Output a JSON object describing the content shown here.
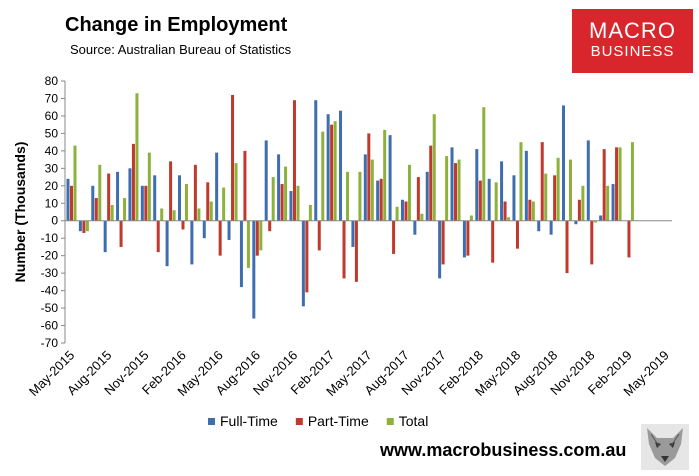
{
  "header": {
    "title": "Change in Employment",
    "subtitle": "Source: Australian Bureau of Statistics"
  },
  "logo": {
    "line1": "MACRO",
    "line2": "BUSINESS",
    "color": "#d9262d"
  },
  "footer": {
    "url": "www.macrobusiness.com.au"
  },
  "chart_data": {
    "type": "bar",
    "ylabel": "Number (Thousands)",
    "ylim": [
      -70,
      80
    ],
    "yticks": [
      80,
      70,
      60,
      50,
      40,
      30,
      20,
      10,
      0,
      -10,
      -20,
      -30,
      -40,
      -50,
      -60,
      -70
    ],
    "grid": false,
    "legend_position": "bottom",
    "categories": [
      "May-2015",
      "Jun-2015",
      "Jul-2015",
      "Aug-2015",
      "Sep-2015",
      "Oct-2015",
      "Nov-2015",
      "Dec-2015",
      "Jan-2016",
      "Feb-2016",
      "Mar-2016",
      "Apr-2016",
      "May-2016",
      "Jun-2016",
      "Jul-2016",
      "Aug-2016",
      "Sep-2016",
      "Oct-2016",
      "Nov-2016",
      "Dec-2016",
      "Jan-2017",
      "Feb-2017",
      "Mar-2017",
      "Apr-2017",
      "May-2017",
      "Jun-2017",
      "Jul-2017",
      "Aug-2017",
      "Sep-2017",
      "Oct-2017",
      "Nov-2017",
      "Dec-2017",
      "Jan-2018",
      "Feb-2018",
      "Mar-2018",
      "Apr-2018",
      "May-2018",
      "Jun-2018",
      "Jul-2018",
      "Aug-2018",
      "Sep-2018",
      "Oct-2018",
      "Nov-2018",
      "Dec-2018",
      "Jan-2019",
      "Feb-2019",
      "Mar-2019",
      "Apr-2019",
      "May-2019"
    ],
    "tick_labels": [
      "May-2015",
      "",
      "",
      "Aug-2015",
      "",
      "",
      "Nov-2015",
      "",
      "",
      "Feb-2016",
      "",
      "",
      "May-2016",
      "",
      "",
      "Aug-2016",
      "",
      "",
      "Nov-2016",
      "",
      "",
      "Feb-2017",
      "",
      "",
      "May-2017",
      "",
      "",
      "Aug-2017",
      "",
      "",
      "Nov-2017",
      "",
      "",
      "Feb-2018",
      "",
      "",
      "May-2018",
      "",
      "",
      "Aug-2018",
      "",
      "",
      "Nov-2018",
      "",
      "",
      "Feb-2019",
      "",
      "",
      "May-2019"
    ],
    "series": [
      {
        "name": "Full-Time",
        "color": "#3e6db0",
        "values": [
          24,
          -6,
          20,
          -18,
          28,
          30,
          20,
          26,
          -26,
          26,
          -25,
          -10,
          39,
          -11,
          -38,
          -56,
          46,
          38,
          17,
          -49,
          69,
          61,
          63,
          -15,
          38,
          23,
          49,
          12,
          -8,
          28,
          -33,
          42,
          -21,
          41,
          24,
          34,
          26,
          40,
          -6,
          -8,
          66,
          -2,
          46,
          3,
          21,
          0,
          0,
          0,
          0
        ]
      },
      {
        "name": "Part-Time",
        "color": "#c0392b",
        "values": [
          20,
          -7,
          13,
          27,
          -15,
          44,
          20,
          -18,
          34,
          -5,
          32,
          22,
          -20,
          72,
          40,
          -20,
          -6,
          21,
          69,
          -41,
          -17,
          55,
          -33,
          -35,
          50,
          24,
          -19,
          11,
          25,
          43,
          -25,
          33,
          -20,
          23,
          -24,
          11,
          -16,
          12,
          45,
          26,
          -30,
          12,
          -25,
          41,
          42,
          -21,
          0,
          0,
          0
        ]
      },
      {
        "name": "Total",
        "color": "#8db23b",
        "values": [
          43,
          -6,
          32,
          9,
          13,
          73,
          39,
          7,
          6,
          21,
          7,
          11,
          19,
          33,
          -27,
          -17,
          25,
          31,
          20,
          9,
          51,
          57,
          28,
          28,
          35,
          52,
          8,
          32,
          4,
          61,
          37,
          35,
          3,
          65,
          22,
          2,
          45,
          11,
          27,
          36,
          35,
          20,
          -1,
          20,
          42,
          45,
          0,
          0,
          0
        ]
      }
    ]
  }
}
